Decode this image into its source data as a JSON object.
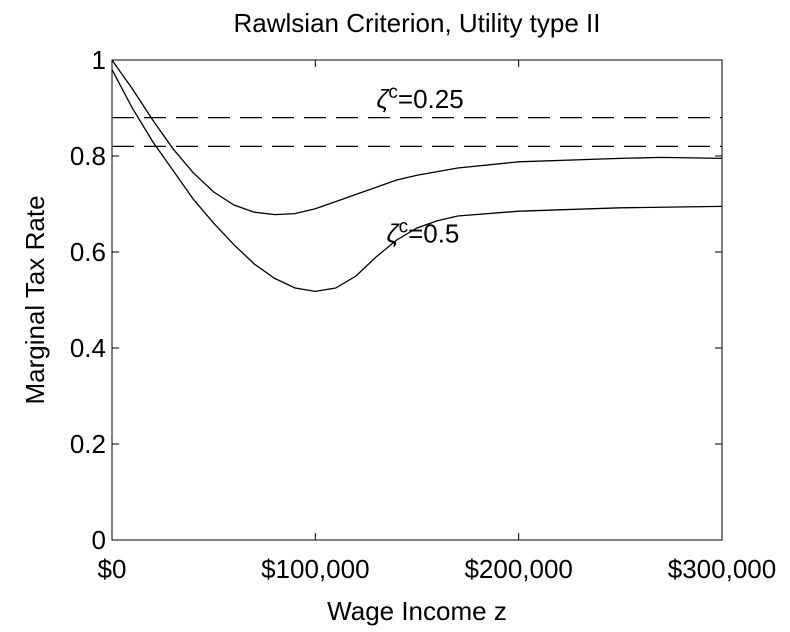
{
  "chart_data": {
    "type": "line",
    "title": "Rawlsian Criterion, Utility type II",
    "xlabel": "Wage Income z",
    "ylabel": "Marginal Tax Rate",
    "xlim": [
      0,
      300000
    ],
    "ylim": [
      0,
      1
    ],
    "xticks": [
      {
        "value": 0,
        "label": "$0"
      },
      {
        "value": 100000,
        "label": "$100,000"
      },
      {
        "value": 200000,
        "label": "$200,000"
      },
      {
        "value": 300000,
        "label": "$300,000"
      }
    ],
    "yticks": [
      0,
      0.2,
      0.4,
      0.6,
      0.8,
      1
    ],
    "series": [
      {
        "color": "#000000",
        "style": "solid",
        "x": [
          0,
          10000,
          20000,
          30000,
          40000,
          50000,
          60000,
          70000,
          80000,
          90000,
          100000,
          110000,
          120000,
          130000,
          140000,
          150000,
          170000,
          200000,
          250000,
          270000,
          300000
        ],
        "values": [
          1.0,
          0.94,
          0.875,
          0.815,
          0.765,
          0.725,
          0.698,
          0.683,
          0.678,
          0.68,
          0.69,
          0.705,
          0.72,
          0.735,
          0.75,
          0.76,
          0.775,
          0.788,
          0.795,
          0.797,
          0.795
        ]
      },
      {
        "color": "#000000",
        "style": "solid",
        "x": [
          0,
          10000,
          20000,
          30000,
          40000,
          50000,
          60000,
          70000,
          80000,
          90000,
          100000,
          110000,
          120000,
          130000,
          140000,
          150000,
          160000,
          170000,
          200000,
          250000,
          300000
        ],
        "values": [
          0.98,
          0.9,
          0.83,
          0.77,
          0.71,
          0.66,
          0.615,
          0.575,
          0.545,
          0.525,
          0.518,
          0.525,
          0.55,
          0.59,
          0.625,
          0.65,
          0.665,
          0.675,
          0.685,
          0.692,
          0.695
        ]
      },
      {
        "color": "#000000",
        "style": "dashed",
        "x": [
          0,
          300000
        ],
        "values": [
          0.88,
          0.88
        ]
      },
      {
        "color": "#000000",
        "style": "dashed",
        "x": [
          0,
          300000
        ],
        "values": [
          0.82,
          0.82
        ]
      }
    ],
    "annotations": [
      {
        "symbol": "ζ",
        "sup": "c",
        "text": "=0.25",
        "x": 130000,
        "y": 0.9
      },
      {
        "symbol": "ζ",
        "sup": "c",
        "text": "=0.5",
        "x": 135000,
        "y": 0.62
      }
    ]
  }
}
